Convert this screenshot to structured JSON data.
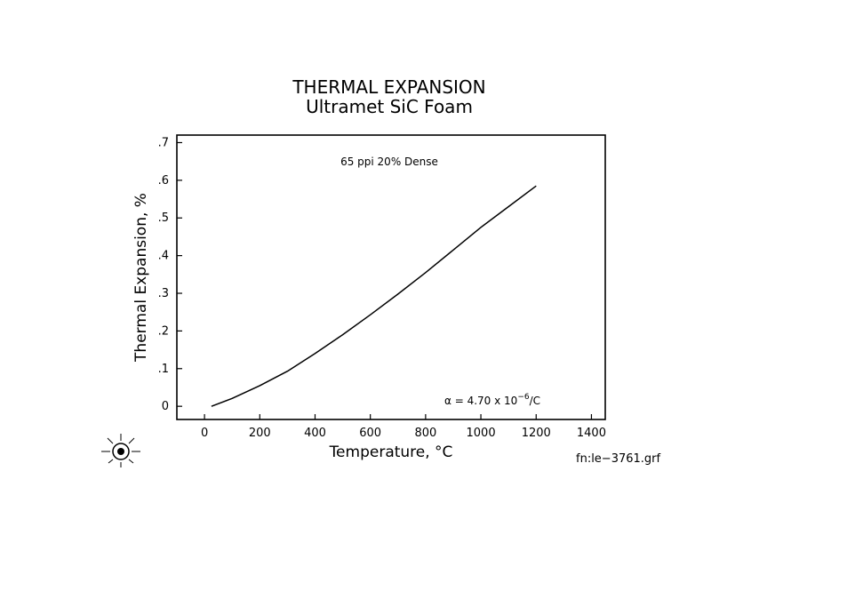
{
  "chart_data": {
    "type": "line",
    "title": "THERMAL EXPANSION",
    "subtitle": "Ultramet SiC Foam",
    "xlabel": "Temperature, °C",
    "ylabel": "Thermal Expansion, %",
    "xlim": [
      -100,
      1450
    ],
    "ylim": [
      -0.035,
      0.72
    ],
    "x_ticks": [
      0,
      200,
      400,
      600,
      800,
      1000,
      1200,
      1400
    ],
    "y_ticks": [
      0,
      0.1,
      0.2,
      0.3,
      0.4,
      0.5,
      0.6,
      0.7
    ],
    "x_tick_labels": [
      "0",
      "200",
      "400",
      "600",
      "800",
      "1000",
      "1200",
      "1400"
    ],
    "y_tick_labels": [
      "0",
      ".1",
      ".2",
      ".3",
      ".4",
      ".5",
      ".6",
      ".7"
    ],
    "grid": false,
    "series": [
      {
        "x": [
          25,
          100,
          200,
          300,
          400,
          500,
          600,
          700,
          800,
          900,
          1000,
          1100,
          1200
        ],
        "y": [
          0.0,
          0.021,
          0.055,
          0.093,
          0.14,
          0.19,
          0.243,
          0.298,
          0.355,
          0.415,
          0.475,
          0.53,
          0.585
        ]
      }
    ],
    "annotations": {
      "sample": "65 ppi 20% Dense",
      "alpha_prefix": "α = 4.70 x 10",
      "alpha_exp": "−6",
      "alpha_suffix": "/C"
    }
  },
  "footer": {
    "filename": "fn:le−3761.grf"
  }
}
